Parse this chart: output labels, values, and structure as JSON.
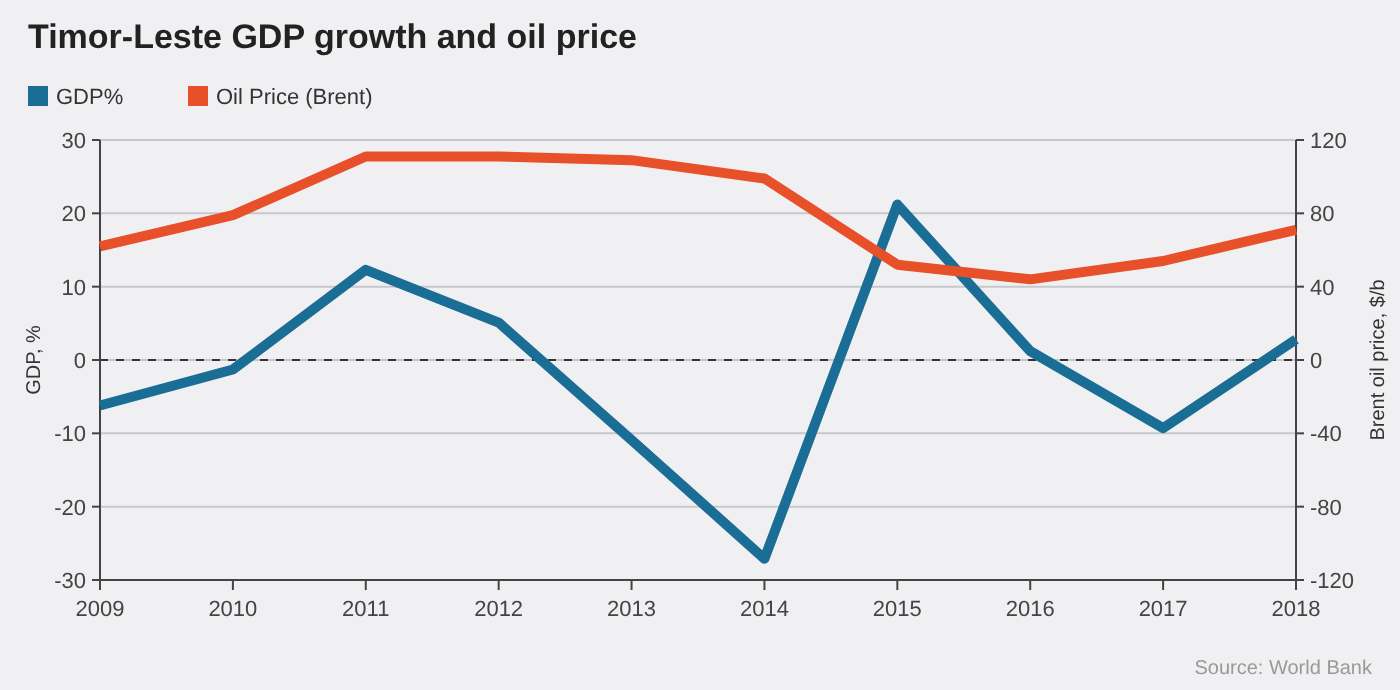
{
  "chart_data": {
    "type": "line",
    "title": "Timor-Leste GDP growth and oil price",
    "ylabel": "GDP, %",
    "y2label": "Brent oil price, $/b",
    "x": [
      2009,
      2010,
      2011,
      2012,
      2013,
      2014,
      2015,
      2016,
      2017,
      2018
    ],
    "xlim": [
      2009,
      2018
    ],
    "xticks": [
      2009,
      2010,
      2011,
      2012,
      2013,
      2014,
      2015,
      2016,
      2017,
      2018
    ],
    "ylim": [
      -30,
      30
    ],
    "yticks": [
      -30,
      -20,
      -10,
      0,
      10,
      20,
      30
    ],
    "y2lim": [
      -120,
      120
    ],
    "y2ticks": [
      -120,
      -80,
      -40,
      0,
      40,
      80,
      120
    ],
    "series": [
      {
        "name": "GDP%",
        "color": "#1a6e96",
        "values": [
          -6.2,
          -1.3,
          12.3,
          5.1,
          -10.9,
          -27.1,
          21.2,
          1.2,
          -9.3,
          2.8
        ]
      },
      {
        "name": "Oil Price (Brent)",
        "color": "#e8502a",
        "axis": "y2",
        "values": [
          62,
          79,
          111,
          111,
          109,
          99,
          52,
          44,
          54,
          71
        ]
      }
    ],
    "ref_lines": [
      {
        "axis": "y",
        "value": 0,
        "color": "#333333",
        "line_style": "dashed"
      }
    ],
    "grid": "y",
    "legend": "top left",
    "line_style": "solid",
    "marker": "none",
    "annotations": [
      "Source: World Bank"
    ]
  }
}
